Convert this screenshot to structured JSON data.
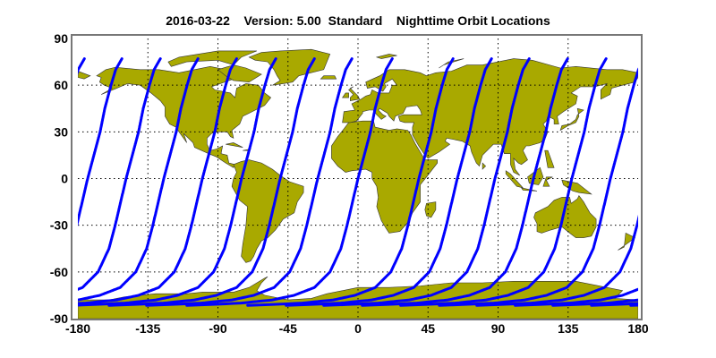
{
  "title": {
    "date": "2016-03-22",
    "version": "Version: 5.00",
    "product": "Standard",
    "name": "Nighttime Orbit Locations"
  },
  "chart_data": {
    "type": "map",
    "projection": "equirectangular",
    "xlim": [
      -180,
      180
    ],
    "ylim": [
      -90,
      90
    ],
    "x_ticks": [
      "-180",
      "-135",
      "-90",
      "-45",
      "0",
      "45",
      "90",
      "135",
      "180"
    ],
    "y_ticks": [
      "90",
      "60",
      "30",
      "0",
      "-30",
      "-60",
      "-90"
    ],
    "grid": true,
    "grid_style": "dotted",
    "land_color": "#a9a900",
    "track_color": "#0000ff",
    "tracks": {
      "equator_crossing_lon": [
        -173.7,
        -149.0,
        -124.8,
        -100.0,
        -74.8,
        -50.0,
        -25.9,
        0.0,
        39.1,
        63.8,
        88.0,
        112.7,
        137.4,
        162.2
      ],
      "lat_range": [
        -81.5,
        77
      ]
    }
  }
}
